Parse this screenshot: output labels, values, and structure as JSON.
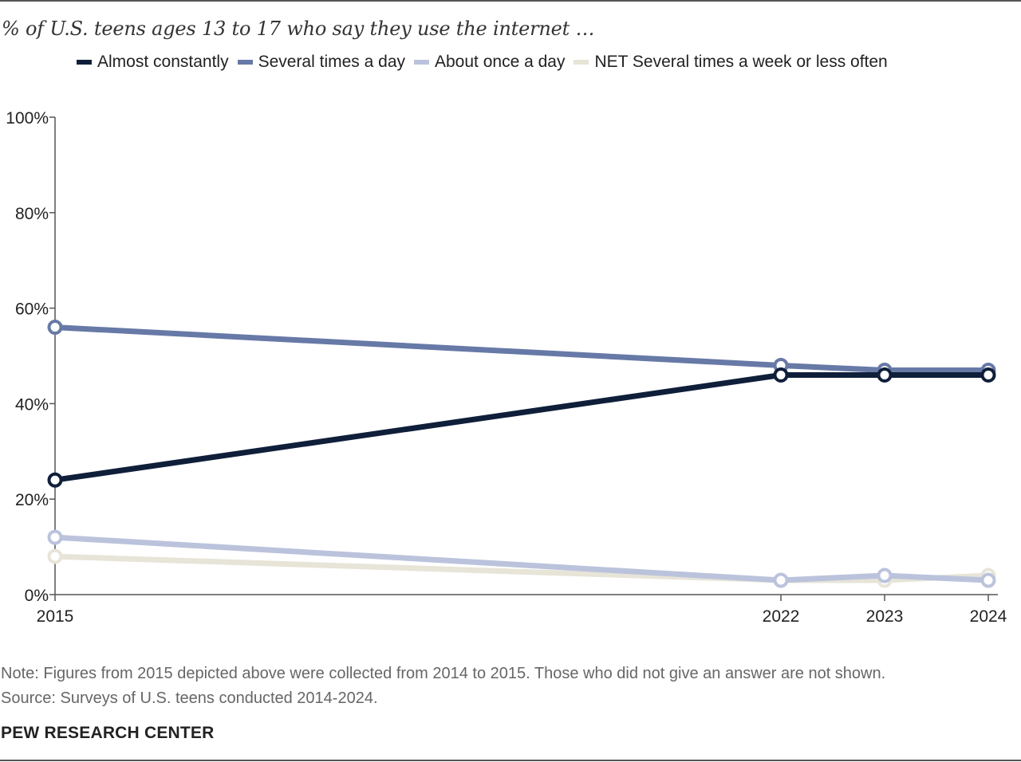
{
  "chart_data": {
    "type": "line",
    "subtitle": "% of U.S. teens ages 13 to 17 who say they use the internet …",
    "x": [
      2015,
      2022,
      2023,
      2024
    ],
    "x_tick_labels": [
      "2015",
      "2022",
      "2023",
      "2024"
    ],
    "y_tick_labels": [
      "0%",
      "20%",
      "40%",
      "60%",
      "80%",
      "100%"
    ],
    "y_ticks": [
      0,
      20,
      40,
      60,
      80,
      100
    ],
    "ylim": [
      0,
      100
    ],
    "grid": false,
    "legend_position": "top",
    "series": [
      {
        "name": "Almost constantly",
        "color": "#0f1f3a",
        "values": [
          24,
          46,
          46,
          46
        ]
      },
      {
        "name": "Several times a day",
        "color": "#6779a6",
        "values": [
          56,
          48,
          47,
          47
        ]
      },
      {
        "name": "About once a day",
        "color": "#bbc3dc",
        "values": [
          12,
          3,
          4,
          3
        ]
      },
      {
        "name": "NET Several times a week or less often",
        "color": "#e7e4d8",
        "values": [
          8,
          3,
          3,
          4
        ]
      }
    ]
  },
  "footer": {
    "note": "Note: Figures from 2015 depicted above were collected from 2014 to 2015. Those who did not give an answer are not shown.",
    "source": "Source: Surveys of U.S. teens conducted 2014-2024.",
    "brand": "PEW RESEARCH CENTER"
  }
}
